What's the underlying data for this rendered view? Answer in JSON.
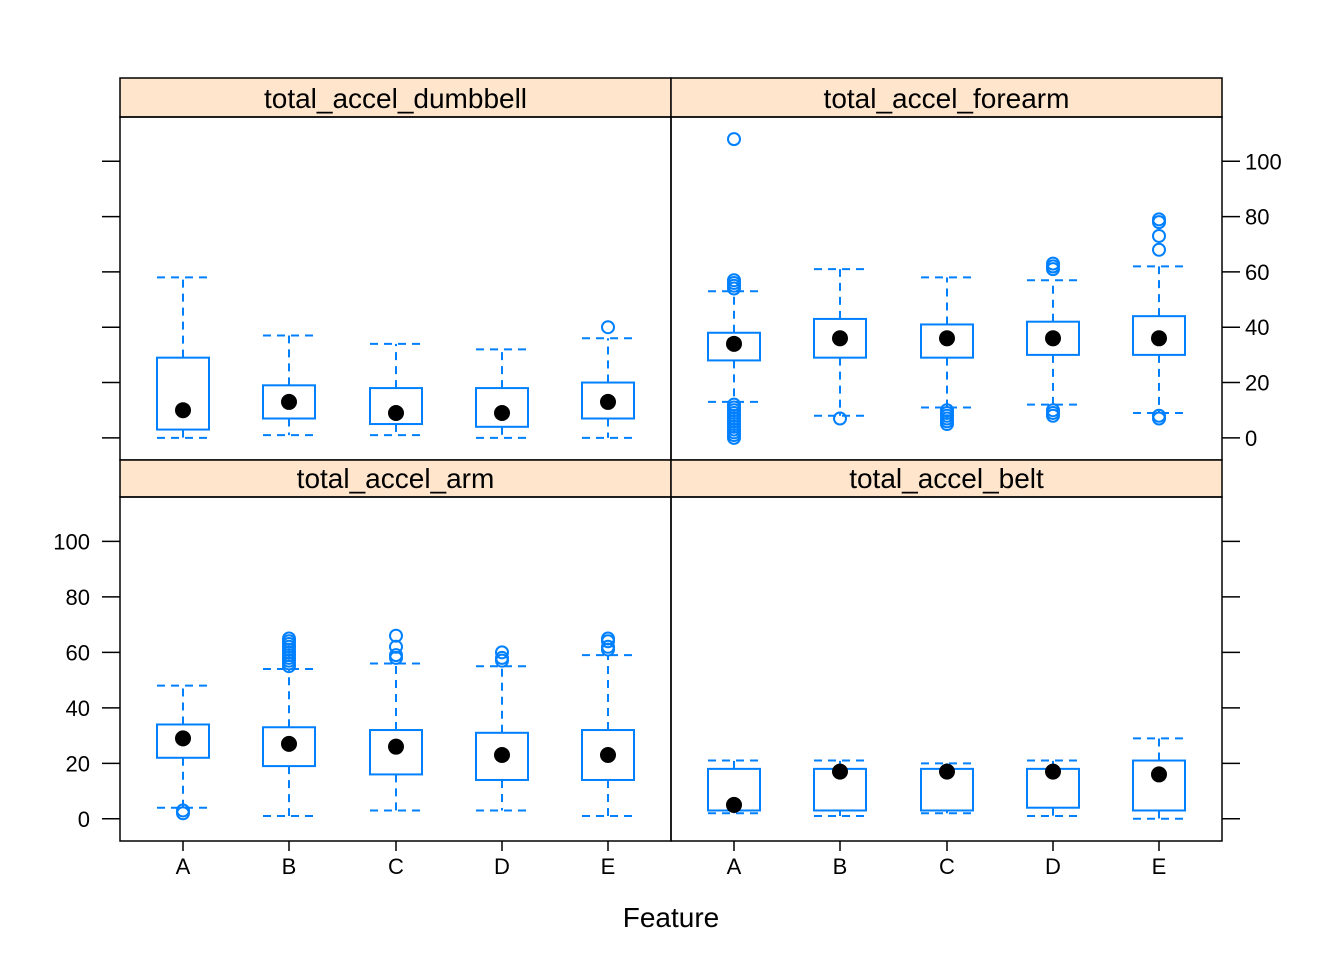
{
  "chart_data": {
    "type": "box",
    "xlabel": "Feature",
    "categories": [
      "A",
      "B",
      "C",
      "D",
      "E"
    ],
    "ylim": [
      -8,
      116
    ],
    "y_ticks": [
      0,
      20,
      40,
      60,
      80,
      100
    ],
    "y_tick_labels": [
      "0",
      "20",
      "40",
      "60",
      "80",
      "100"
    ],
    "colors": {
      "strip_bg": "#ffe5cc",
      "box": "#0080ff",
      "median": "#000000",
      "frame": "#000000"
    },
    "panels": [
      {
        "name": "total_accel_dumbbell",
        "boxes": [
          {
            "category": "A",
            "low": 0,
            "q1": 3,
            "median": 10,
            "q3": 29,
            "high": 58,
            "outliers": []
          },
          {
            "category": "B",
            "low": 1,
            "q1": 7,
            "median": 13,
            "q3": 19,
            "high": 37,
            "outliers": []
          },
          {
            "category": "C",
            "low": 1,
            "q1": 5,
            "median": 9,
            "q3": 18,
            "high": 34,
            "outliers": []
          },
          {
            "category": "D",
            "low": 0,
            "q1": 4,
            "median": 9,
            "q3": 18,
            "high": 32,
            "outliers": []
          },
          {
            "category": "E",
            "low": 0,
            "q1": 7,
            "median": 13,
            "q3": 20,
            "high": 36,
            "outliers": [
              40
            ]
          }
        ]
      },
      {
        "name": "total_accel_forearm",
        "boxes": [
          {
            "category": "A",
            "low": 13,
            "q1": 28,
            "median": 34,
            "q3": 38,
            "high": 53,
            "outliers": [
              0,
              1,
              2,
              3,
              4,
              5,
              6,
              7,
              8,
              9,
              10,
              11,
              12,
              54,
              55,
              56,
              57,
              108
            ]
          },
          {
            "category": "B",
            "low": 8,
            "q1": 29,
            "median": 36,
            "q3": 43,
            "high": 61,
            "outliers": [
              7
            ]
          },
          {
            "category": "C",
            "low": 11,
            "q1": 29,
            "median": 36,
            "q3": 41,
            "high": 58,
            "outliers": [
              5,
              6,
              7,
              8,
              9,
              10
            ]
          },
          {
            "category": "D",
            "low": 12,
            "q1": 30,
            "median": 36,
            "q3": 42,
            "high": 57,
            "outliers": [
              8,
              9,
              10,
              61,
              62,
              63
            ]
          },
          {
            "category": "E",
            "low": 9,
            "q1": 30,
            "median": 36,
            "q3": 44,
            "high": 62,
            "outliers": [
              7,
              8,
              68,
              73,
              78,
              79
            ]
          }
        ]
      },
      {
        "name": "total_accel_arm",
        "boxes": [
          {
            "category": "A",
            "low": 4,
            "q1": 22,
            "median": 29,
            "q3": 34,
            "high": 48,
            "outliers": [
              2,
              3
            ]
          },
          {
            "category": "B",
            "low": 1,
            "q1": 19,
            "median": 27,
            "q3": 33,
            "high": 54,
            "outliers": [
              55,
              56,
              57,
              58,
              59,
              60,
              61,
              62,
              63,
              64,
              65
            ]
          },
          {
            "category": "C",
            "low": 3,
            "q1": 16,
            "median": 26,
            "q3": 32,
            "high": 56,
            "outliers": [
              58,
              59,
              62,
              66
            ]
          },
          {
            "category": "D",
            "low": 3,
            "q1": 14,
            "median": 23,
            "q3": 31,
            "high": 55,
            "outliers": [
              57,
              58,
              60
            ]
          },
          {
            "category": "E",
            "low": 1,
            "q1": 14,
            "median": 23,
            "q3": 32,
            "high": 59,
            "outliers": [
              61,
              62,
              64,
              65
            ]
          }
        ]
      },
      {
        "name": "total_accel_belt",
        "boxes": [
          {
            "category": "A",
            "low": 2,
            "q1": 3,
            "median": 5,
            "q3": 18,
            "high": 21,
            "outliers": []
          },
          {
            "category": "B",
            "low": 1,
            "q1": 3,
            "median": 17,
            "q3": 18,
            "high": 21,
            "outliers": []
          },
          {
            "category": "C",
            "low": 2,
            "q1": 3,
            "median": 17,
            "q3": 18,
            "high": 20,
            "outliers": []
          },
          {
            "category": "D",
            "low": 1,
            "q1": 4,
            "median": 17,
            "q3": 18,
            "high": 21,
            "outliers": []
          },
          {
            "category": "E",
            "low": 0,
            "q1": 3,
            "median": 16,
            "q3": 21,
            "high": 29,
            "outliers": []
          }
        ]
      }
    ]
  }
}
